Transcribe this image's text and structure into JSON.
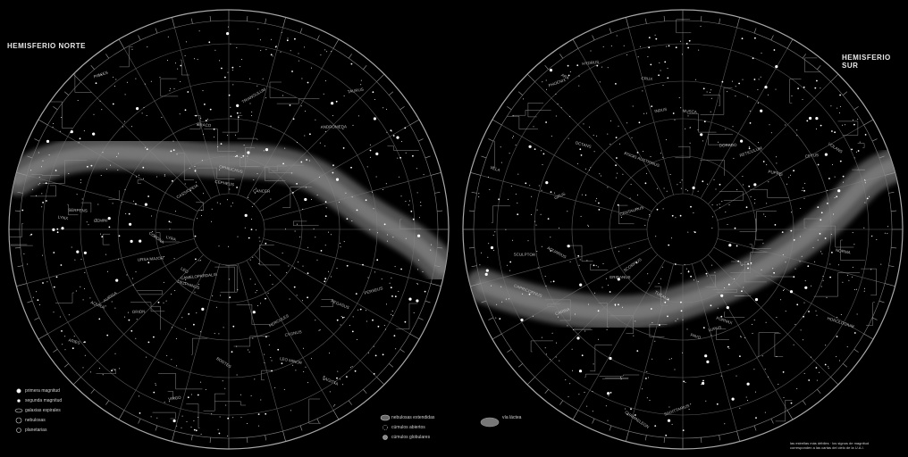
{
  "hemispheres": {
    "north": {
      "title": "HEMISFERIO NORTE"
    },
    "south": {
      "title": "HEMISFERIO SUR"
    }
  },
  "legend": {
    "left": [
      {
        "icon": "star-bright-icon",
        "label": "primera magnitud"
      },
      {
        "icon": "star-medium-icon",
        "label": "segunda magnitud"
      },
      {
        "icon": "galaxy-icon",
        "label": "galaxias espirales"
      },
      {
        "icon": "nebula-icon",
        "label": "nebulosas"
      },
      {
        "icon": "variable-star-icon",
        "label": "planetarias"
      }
    ],
    "middle": [
      {
        "icon": "diffuse-nebula-icon",
        "label": "nebulosas extendidas"
      },
      {
        "icon": "open-cluster-icon",
        "label": "cúmulos abiertos"
      },
      {
        "icon": "globular-cluster-icon",
        "label": "cúmulos globulares"
      }
    ],
    "cluster_label": "vía láctea"
  },
  "credit": {
    "line1": "las estrellas más débiles · los signos de magnitud",
    "line2": "corresponden a las cartas del cielo de la U.A.I."
  },
  "constellation_labels": {
    "north": [
      "URSA MAJOR",
      "CASSIOPEIA",
      "CEPHEUS",
      "DRACO",
      "CYGNUS",
      "LYRA",
      "PERSEUS",
      "AURIGA",
      "GEMINI",
      "CANCER",
      "LEO",
      "BOOTES",
      "HERCULES",
      "AQUILA",
      "PEGASUS",
      "ANDROMEDA",
      "PISCES",
      "ARIES",
      "TAURUS",
      "ORION",
      "VIRGO",
      "CORONA",
      "SERPENS",
      "OPHIUCHUS",
      "LEO MINOR",
      "LYNX",
      "CAMELOPARDALIS",
      "TRIANGULUM",
      "SAGITTA",
      "DELPHINUS"
    ],
    "south": [
      "CENTAURUS",
      "CRUX",
      "CARINA",
      "VELA",
      "PUPPIS",
      "SCORPIUS",
      "SAGITTARIUS",
      "CAPRICORNUS",
      "AQUARIUS",
      "PISCIS AUSTRINUS",
      "GRUS",
      "PHOENIX",
      "TUCANA",
      "HYDRUS",
      "OCTANS",
      "PAVO",
      "INDUS",
      "ARA",
      "LUPUS",
      "NORMA",
      "MUSCA",
      "CHAMAELEON",
      "VOLANS",
      "DORADO",
      "RETICULUM",
      "HOROLOGIUM",
      "ERIDANUS",
      "FORNAX",
      "SCULPTOR",
      "CETUS"
    ]
  },
  "colors": {
    "background": "#000000",
    "lines": "#9a9a9a",
    "stars": "#ffffff",
    "milky_way": "#8a8a8a"
  }
}
